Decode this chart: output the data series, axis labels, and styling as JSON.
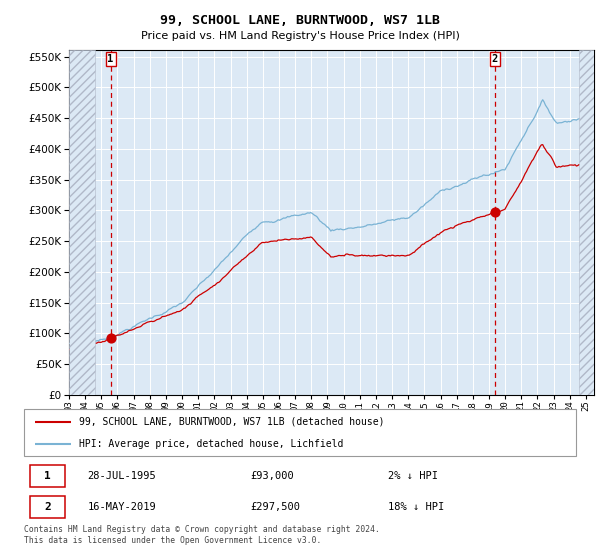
{
  "title": "99, SCHOOL LANE, BURNTWOOD, WS7 1LB",
  "subtitle": "Price paid vs. HM Land Registry's House Price Index (HPI)",
  "sale1_date": "28-JUL-1995",
  "sale1_price": 93000,
  "sale1_pct": "2% ↓ HPI",
  "sale2_date": "16-MAY-2019",
  "sale2_price": 297500,
  "sale2_pct": "18% ↓ HPI",
  "legend_property": "99, SCHOOL LANE, BURNTWOOD, WS7 1LB (detached house)",
  "legend_hpi": "HPI: Average price, detached house, Lichfield",
  "footer": "Contains HM Land Registry data © Crown copyright and database right 2024.\nThis data is licensed under the Open Government Licence v3.0.",
  "hpi_color": "#7ab3d4",
  "property_color": "#cc0000",
  "plot_bg": "#dce9f5",
  "ylim": [
    0,
    560000
  ],
  "ytick_vals": [
    0,
    50000,
    100000,
    150000,
    200000,
    250000,
    300000,
    350000,
    400000,
    450000,
    500000,
    550000
  ],
  "sale1_x_year": 1995.57,
  "sale2_x_year": 2019.37,
  "xmin": 1993.0,
  "xmax": 2025.5,
  "hatch_right_start": 2024.58
}
